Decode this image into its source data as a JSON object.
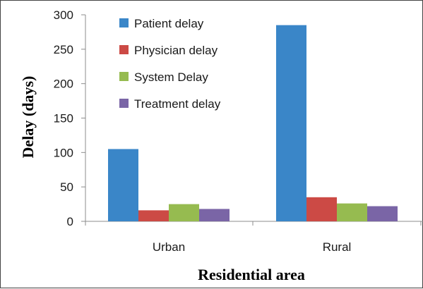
{
  "chart_data": {
    "type": "bar",
    "title": "",
    "xlabel": "Residential area",
    "ylabel": "Delay (days)",
    "ylim": [
      0,
      300
    ],
    "yticks": [
      0,
      50,
      100,
      150,
      200,
      250,
      300
    ],
    "categories": [
      "Urban",
      "Rural"
    ],
    "series": [
      {
        "name": "Patient delay",
        "values": [
          105,
          285
        ],
        "color": "#3a86c8"
      },
      {
        "name": "Physician delay",
        "values": [
          16,
          35
        ],
        "color": "#cc4a45"
      },
      {
        "name": "System Delay",
        "values": [
          25,
          26
        ],
        "color": "#96bb50"
      },
      {
        "name": "Treatment delay",
        "values": [
          18,
          22
        ],
        "color": "#7a65a6"
      }
    ],
    "legend_position": "top-left inside plot",
    "grid": false
  }
}
